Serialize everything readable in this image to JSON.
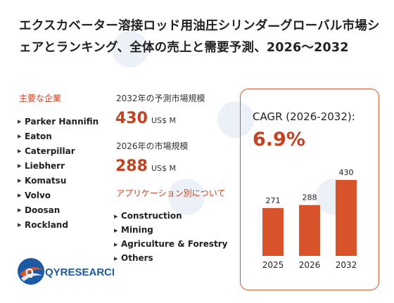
{
  "title": "エクスカベーター溶接ロッド用油圧シリンダ—グローバル市場シェアとランキング、全体の売上と需要予測、2026～2032",
  "companies": {
    "heading": "主要な企業",
    "items": [
      "Parker Hannifin",
      "Eaton",
      "Caterpillar",
      "Liebherr",
      "Komatsu",
      "Volvo",
      "Doosan",
      "Rockland"
    ]
  },
  "market_2032": {
    "label": "2032年の予測市場規模",
    "value": "430",
    "unit": "US$ M"
  },
  "market_2026": {
    "label": "2026年の市場規模",
    "value": "288",
    "unit": "US$ M"
  },
  "applications": {
    "heading": "アプリケーション別について",
    "items": [
      "Construction",
      "Mining",
      "Agriculture & Forestry",
      "Others"
    ]
  },
  "cagr": {
    "label": "CAGR (2026-2032):",
    "value": "6.9%"
  },
  "chart_data": {
    "type": "bar",
    "categories": [
      "2025",
      "2026",
      "2032"
    ],
    "values": [
      271,
      288,
      430
    ],
    "data_labels": [
      "271",
      "288",
      "430"
    ],
    "ylim": [
      0,
      430
    ],
    "color": "#d9532a"
  },
  "logo": {
    "text": "QYRESEARCH"
  },
  "colors": {
    "accent": "#c8401e",
    "bar": "#d9532a",
    "text": "#222222"
  }
}
